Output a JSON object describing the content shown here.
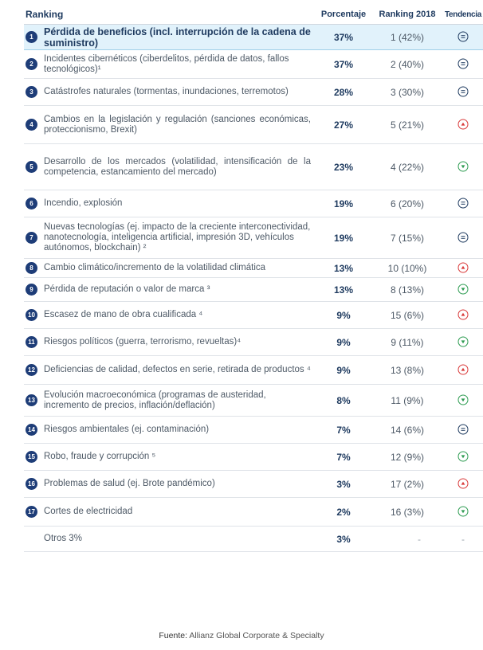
{
  "chart_data": {
    "type": "table",
    "columns": [
      "Ranking",
      "Porcentaje",
      "Ranking 2018",
      "Tendencia"
    ],
    "rows": [
      {
        "num": "1",
        "risk": "Pérdida de beneficios (incl. interrupción de la cadena de suministro)",
        "pct": "37%",
        "prev": "1 (42%)",
        "trend": "same",
        "highlight": true
      },
      {
        "num": "2",
        "risk": "Incidentes cibernéticos (ciberdelitos, pérdida de datos, fallos tecnológicos)¹",
        "pct": "37%",
        "prev": "2 (40%)",
        "trend": "same"
      },
      {
        "num": "3",
        "risk": "Catástrofes naturales (tormentas, inundaciones, terremotos)",
        "pct": "28%",
        "prev": "3 (30%)",
        "trend": "same"
      },
      {
        "num": "4",
        "risk": "Cambios en la legislación y regulación (sanciones económicas, proteccionismo, Brexit)",
        "pct": "27%",
        "prev": "5 (21%)",
        "trend": "up"
      },
      {
        "num": "5",
        "risk": "Desarrollo de los mercados (volatilidad, intensificación de la competencia, estancamiento del mercado)",
        "pct": "23%",
        "prev": "4 (22%)",
        "trend": "down"
      },
      {
        "num": "6",
        "risk": "Incendio, explosión",
        "pct": "19%",
        "prev": "6 (20%)",
        "trend": "same"
      },
      {
        "num": "7",
        "risk": "Nuevas tecnologías (ej. impacto de la creciente interconectividad, nanotecnología, inteligencia artificial, impresión 3D, vehículos autónomos, blockchain) ²",
        "pct": "19%",
        "prev": "7 (15%)",
        "trend": "same"
      },
      {
        "num": "8",
        "risk": "Cambio climático/incremento de la volatilidad climática",
        "pct": "13%",
        "prev": "10 (10%)",
        "trend": "up"
      },
      {
        "num": "9",
        "risk": "Pérdida de reputación o valor de marca ³",
        "pct": "13%",
        "prev": "8 (13%)",
        "trend": "down"
      },
      {
        "num": "10",
        "risk": "Escasez de mano de obra cualificada ⁴",
        "pct": "9%",
        "prev": "15 (6%)",
        "trend": "up"
      },
      {
        "num": "11",
        "risk": "Riesgos políticos (guerra, terrorismo, revueltas)⁴",
        "pct": "9%",
        "prev": "9 (11%)",
        "trend": "down"
      },
      {
        "num": "12",
        "risk": "Deficiencias de calidad, defectos en serie, retirada de productos ⁴",
        "pct": "9%",
        "prev": "13 (8%)",
        "trend": "up"
      },
      {
        "num": "13",
        "risk": "Evolución macroeconómica (programas de austeridad, incremento de precios, inflación/deflación)",
        "pct": "8%",
        "prev": "11 (9%)",
        "trend": "down"
      },
      {
        "num": "14",
        "risk": "Riesgos ambientales (ej. contaminación)",
        "pct": "7%",
        "prev": "14 (6%)",
        "trend": "same"
      },
      {
        "num": "15",
        "risk": "Robo, fraude y corrupción ⁵",
        "pct": "7%",
        "prev": "12 (9%)",
        "trend": "down"
      },
      {
        "num": "16",
        "risk": "Problemas de salud (ej. Brote pandémico)",
        "pct": "3%",
        "prev": "17 (2%)",
        "trend": "up"
      },
      {
        "num": "17",
        "risk": "Cortes de electricidad",
        "pct": "2%",
        "prev": "16 (3%)",
        "trend": "down"
      },
      {
        "num": "",
        "risk": "Otros 3%",
        "pct": "3%",
        "prev": "-",
        "trend": "none"
      }
    ]
  },
  "source": {
    "label": "Fuente:",
    "text": " Allianz Global Corporate & Specialty"
  },
  "colors": {
    "same": "#1e3a5f",
    "up": "#d93a3a",
    "down": "#2e9c52"
  }
}
